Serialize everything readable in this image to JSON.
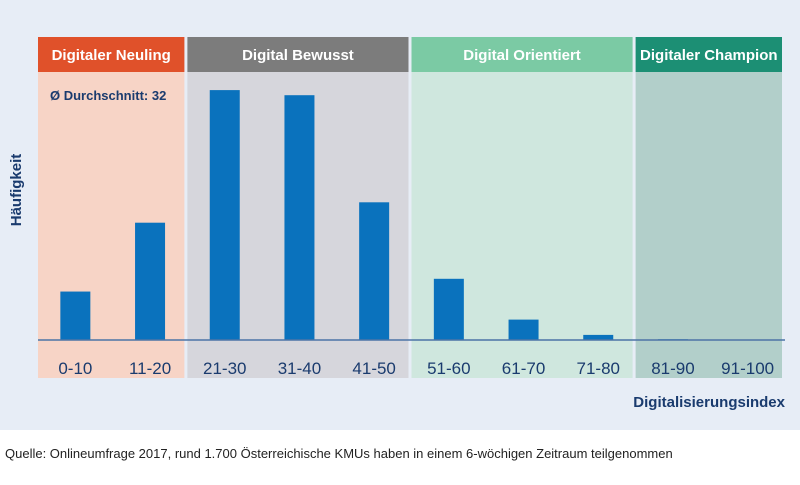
{
  "chart_data": {
    "type": "bar",
    "categories": [
      "0-10",
      "11-20",
      "21-30",
      "31-40",
      "41-50",
      "51-60",
      "61-70",
      "71-80",
      "81-90",
      "91-100"
    ],
    "values": [
      19,
      46,
      98,
      96,
      54,
      24,
      8,
      2,
      0.3,
      0
    ],
    "ylim": [
      0,
      100
    ],
    "ylabel": "Häufigkeit",
    "xlabel": "Digitalisierungsindex",
    "annotation": "Ø Durchschnitt: 32",
    "bar_color": "#0a72bd",
    "grid": false,
    "segments": [
      {
        "label": "Digitaler Neuling",
        "header_color": "#e0512a",
        "band_color": "#f7d4c6",
        "from_index": 0,
        "to_index": 2
      },
      {
        "label": "Digital Bewusst",
        "header_color": "#7c7c7c",
        "band_color": "#d6d6dc",
        "from_index": 2,
        "to_index": 5
      },
      {
        "label": "Digital Orientiert",
        "header_color": "#7bcaa4",
        "band_color": "#cfe7de",
        "from_index": 5,
        "to_index": 8
      },
      {
        "label": "Digitaler Champion",
        "header_color": "#1c8f74",
        "band_color": "#b2cfca",
        "from_index": 8,
        "to_index": 10
      }
    ]
  },
  "footer": {
    "source": "Quelle: Onlineumfrage 2017, rund 1.700 Österreichische KMUs haben in einem 6-wöchigen Zeitraum teilgenommen"
  },
  "colors": {
    "panel_bg": "#e7edf6",
    "text_navy": "#1a3b6e",
    "axis_line": "#4c74a6"
  }
}
